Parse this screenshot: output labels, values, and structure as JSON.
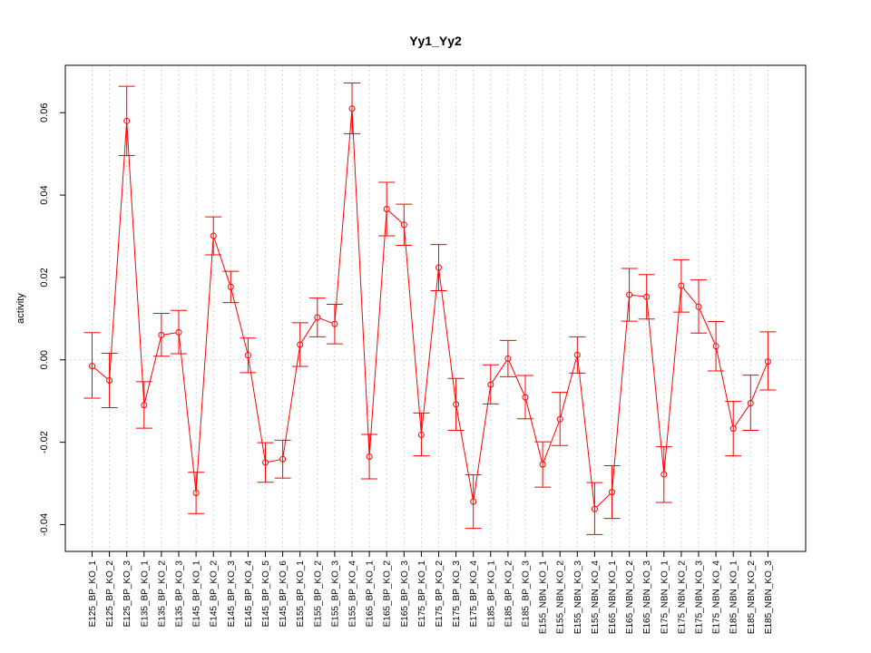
{
  "chart_data": {
    "type": "line",
    "title": "Yy1_Yy2",
    "xlabel": "",
    "ylabel": "activity",
    "ylim": [
      -0.0465,
      0.0715
    ],
    "yticks": [
      "-0.04",
      "-0.02",
      "0.00",
      "0.02",
      "0.04",
      "0.06"
    ],
    "ytick_values": [
      -0.04,
      -0.02,
      0.0,
      0.02,
      0.04,
      0.06
    ],
    "grid": true,
    "color": "#ff0000",
    "categories": [
      "E125_BP_KO_1",
      "E125_BP_KO_2",
      "E125_BP_KO_3",
      "E135_BP_KO_1",
      "E135_BP_KO_2",
      "E135_BP_KO_3",
      "E145_BP_KO_1",
      "E145_BP_KO_2",
      "E145_BP_KO_3",
      "E145_BP_KO_4",
      "E145_BP_KO_5",
      "E145_BP_KO_6",
      "E155_BP_KO_1",
      "E155_BP_KO_2",
      "E155_BP_KO_3",
      "E155_BP_KO_4",
      "E165_BP_KO_1",
      "E165_BP_KO_2",
      "E165_BP_KO_3",
      "E175_BP_KO_1",
      "E175_BP_KO_2",
      "E175_BP_KO_3",
      "E175_BP_KO_4",
      "E185_BP_KO_1",
      "E185_BP_KO_2",
      "E185_BP_KO_3",
      "E155_NBN_KO_1",
      "E155_NBN_KO_2",
      "E155_NBN_KO_3",
      "E155_NBN_KO_4",
      "E165_NBN_KO_1",
      "E165_NBN_KO_2",
      "E165_NBN_KO_3",
      "E175_NBN_KO_1",
      "E175_NBN_KO_2",
      "E175_NBN_KO_3",
      "E175_NBN_KO_4",
      "E185_NBN_KO_1",
      "E185_NBN_KO_2",
      "E185_NBN_KO_3"
    ],
    "values": [
      -0.0015,
      -0.005,
      0.058,
      -0.011,
      0.006,
      0.0067,
      -0.0323,
      0.0301,
      0.0177,
      0.0011,
      -0.0249,
      -0.0241,
      0.0037,
      0.0103,
      0.0087,
      0.061,
      -0.0235,
      0.0366,
      0.0328,
      -0.0182,
      0.0224,
      -0.0108,
      -0.0344,
      -0.006,
      0.0003,
      -0.0091,
      -0.0254,
      -0.0144,
      0.0012,
      -0.0362,
      -0.0321,
      0.0158,
      0.0153,
      -0.0278,
      0.018,
      0.0129,
      0.0033,
      -0.0167,
      -0.0105,
      -0.0004
    ],
    "upper": [
      0.0066,
      0.0016,
      0.0664,
      -0.0053,
      0.0113,
      0.012,
      -0.0273,
      0.0347,
      0.0215,
      0.0053,
      -0.0201,
      -0.0195,
      0.009,
      0.015,
      0.0135,
      0.0672,
      -0.0181,
      0.0431,
      0.0378,
      -0.0129,
      0.028,
      -0.0045,
      -0.0279,
      -0.0012,
      0.0047,
      -0.0038,
      -0.0199,
      -0.0079,
      0.0056,
      -0.0298,
      -0.0257,
      0.0222,
      0.0207,
      -0.0211,
      0.0243,
      0.0194,
      0.0093,
      -0.0101,
      -0.0037,
      0.0068
    ],
    "lower": [
      -0.0093,
      -0.0116,
      0.0496,
      -0.0166,
      0.0009,
      0.0015,
      -0.0373,
      0.0255,
      0.0139,
      -0.0031,
      -0.0297,
      -0.0287,
      -0.0016,
      0.0056,
      0.0039,
      0.0549,
      -0.0289,
      0.0301,
      0.0278,
      -0.0233,
      0.0168,
      -0.0171,
      -0.0409,
      -0.0107,
      -0.0041,
      -0.0143,
      -0.0309,
      -0.0208,
      -0.0032,
      -0.0424,
      -0.0385,
      0.0094,
      0.0099,
      -0.0346,
      0.0116,
      0.0065,
      -0.0027,
      -0.0233,
      -0.0171,
      -0.0073
    ]
  }
}
